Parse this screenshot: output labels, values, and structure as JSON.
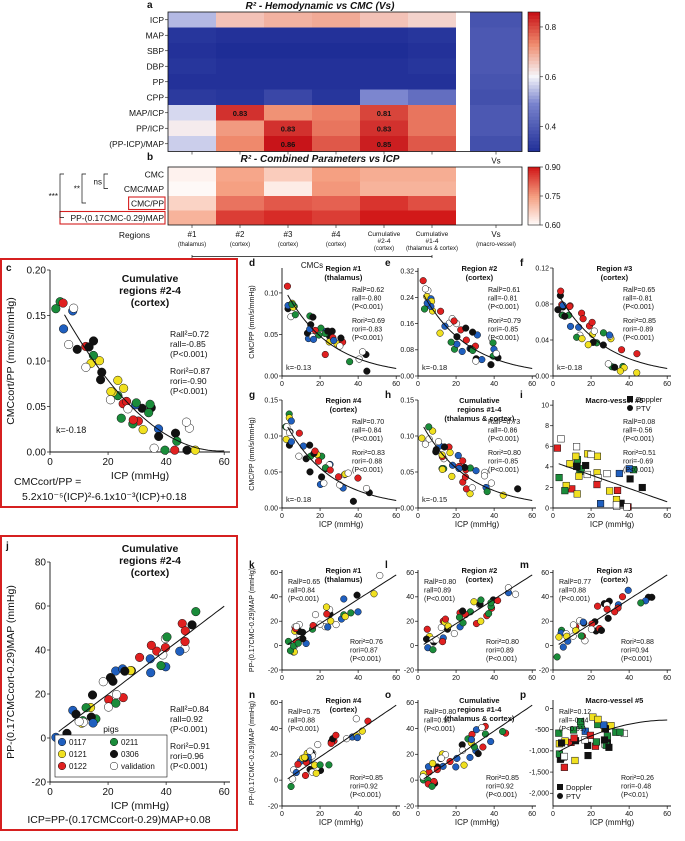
{
  "panel_a": {
    "letter": "a",
    "title": "R² - Hemodynamic vs CMC (Vs)",
    "rows": [
      "ICP",
      "MAP",
      "SBP",
      "DBP",
      "PP",
      "CPP",
      "MAP/ICP",
      "PP/ICP",
      "(PP-ICP)/MAP"
    ],
    "vs_label": "Vs",
    "vs_sublabel": "(macro-vessel)",
    "scale_ticks": [
      "0.8",
      "0.6",
      "0.4"
    ],
    "values": [
      [
        0.55,
        0.67,
        0.69,
        0.7,
        0.67,
        0.65,
        0.39
      ],
      [
        0.32,
        0.31,
        0.31,
        0.31,
        0.31,
        0.32,
        0.4
      ],
      [
        0.31,
        0.3,
        0.3,
        0.3,
        0.3,
        0.31,
        0.4
      ],
      [
        0.32,
        0.31,
        0.31,
        0.31,
        0.31,
        0.32,
        0.4
      ],
      [
        0.31,
        0.31,
        0.31,
        0.31,
        0.31,
        0.31,
        0.39
      ],
      [
        0.33,
        0.32,
        0.36,
        0.32,
        0.5,
        0.45,
        0.38
      ],
      [
        0.58,
        0.83,
        0.73,
        0.75,
        0.81,
        0.76,
        0.4
      ],
      [
        0.62,
        0.72,
        0.83,
        0.76,
        0.83,
        0.76,
        0.4
      ],
      [
        0.57,
        0.74,
        0.86,
        0.79,
        0.85,
        0.79,
        0.38
      ]
    ],
    "labels": [
      {
        "row": 6,
        "col": 1,
        "text": "0.83"
      },
      {
        "row": 6,
        "col": 4,
        "text": "0.81"
      },
      {
        "row": 7,
        "col": 2,
        "text": "0.83"
      },
      {
        "row": 7,
        "col": 4,
        "text": "0.83"
      },
      {
        "row": 8,
        "col": 2,
        "text": "0.86"
      },
      {
        "row": 8,
        "col": 4,
        "text": "0.85"
      }
    ]
  },
  "panel_b": {
    "letter": "b",
    "title": "R² - Combined Parameters vs ICP",
    "rows": [
      "CMC",
      "CMC/MAP",
      "CMC/PP",
      "PP-(0.17CMC-0.29)MAP"
    ],
    "boxed_rows": [
      2,
      3
    ],
    "scale_ticks": [
      "0.90",
      "0.75",
      "0.60"
    ],
    "sig": [
      "***",
      "**",
      "ns"
    ],
    "values": [
      [
        0.62,
        0.74,
        0.68,
        0.75,
        0.73,
        0.73
      ],
      [
        0.61,
        0.75,
        0.63,
        0.76,
        0.72,
        0.72
      ],
      [
        0.67,
        0.8,
        0.83,
        0.82,
        0.87,
        0.84
      ],
      [
        0.72,
        0.86,
        0.88,
        0.86,
        0.91,
        0.9
      ]
    ],
    "regions_label": "Regions",
    "columns": [
      {
        "top": "#1",
        "bottom": "(thalamus)"
      },
      {
        "top": "#2",
        "bottom": "(cortex)"
      },
      {
        "top": "#3",
        "bottom": "(cortex)"
      },
      {
        "top": "#4",
        "bottom": "(cortex)"
      },
      {
        "top": "Cumulative #2-4",
        "bottom": "(cortex)"
      },
      {
        "top": "Cumulative #1-4",
        "bottom": "(thalamus & cortex)"
      }
    ],
    "column_extra": {
      "top": "Vs",
      "bottom": "(macro-vessel)"
    },
    "cmcs_label": "CMCs"
  },
  "panel_c": {
    "letter": "c",
    "title": [
      "Cumulative",
      "regions #2-4",
      "(cortex)"
    ],
    "ylabel": "CMCcort/PP (mm/s/mmHg)",
    "xlabel": "ICP (mmHg)",
    "xticks": [
      0,
      20,
      40,
      60
    ],
    "yticks": [
      0.0,
      0.05,
      0.1,
      0.15,
      0.2
    ],
    "xlim": [
      0,
      62
    ],
    "ylim": [
      0,
      0.2
    ],
    "stats": [
      "Rall²=0.72",
      "rall=-0.85",
      "(P<0.001)",
      "Rori²=0.87",
      "rori=-0.90",
      "(P<0.001)"
    ],
    "k": "k=-0.18",
    "equation": [
      "CMCcort/PP =",
      "5.2x10⁻⁵(ICP)²-6.1x10⁻³(ICP)+0.18"
    ],
    "fit": {
      "a": 5.2e-05,
      "b": -0.0061,
      "c": 0.18,
      "x0": 5,
      "x1": 60
    }
  },
  "panel_j": {
    "letter": "j",
    "title": [
      "Cumulative",
      "regions #2-4",
      "(cortex)"
    ],
    "ylabel": "PP-(0.17CMCcort-0.29)MAP (mmHg)",
    "xlabel": "ICP (mmHg)",
    "xticks": [
      0,
      20,
      40,
      60
    ],
    "yticks": [
      -20,
      0,
      20,
      40,
      60,
      80
    ],
    "xlim": [
      0,
      62
    ],
    "ylim": [
      -20,
      80
    ],
    "stats": [
      "Rall²=0.84",
      "rall=0.92",
      "(P<0.001)",
      "Rori²=0.91",
      "rori=0.96",
      "(P<0.001)"
    ],
    "equation": "ICP=PP-(0.17CMCcort-0.29)MAP+0.08",
    "legend_title": "pigs",
    "legend": [
      {
        "label": "0117",
        "color": "#1f5fbf"
      },
      {
        "label": "0211",
        "color": "#1a8c3a"
      },
      {
        "label": "0121",
        "color": "#f0e020"
      },
      {
        "label": "0306",
        "color": "#111111"
      },
      {
        "label": "0122",
        "color": "#e02020"
      },
      {
        "label": "validation",
        "color": "#ffffff"
      }
    ],
    "fit": {
      "slope": 1.0,
      "intercept": -0.08,
      "x0": 3,
      "x1": 60
    }
  },
  "small_panels_top": [
    {
      "letter": "d",
      "title": [
        "Region #1",
        "(thalamus)"
      ],
      "stats": [
        "Rall²=0.62",
        "rall=-0.80",
        "(P<0.001)",
        "Rori²=0.69",
        "rori=-0.83",
        "(P<0.001)"
      ],
      "k": "k=-0.13",
      "ylabel": "CMC/PP (mm/s/mmHg)",
      "yticks": [
        "0.00",
        "0.05",
        "0.10"
      ],
      "ymax": 0.13,
      "xlabel": ""
    },
    {
      "letter": "e",
      "title": [
        "Region #2",
        "(cortex)"
      ],
      "stats": [
        "Rall²=0.61",
        "rall=-0.81",
        "(P<0.001)",
        "Rori²=0.79",
        "rori=-0.85",
        "(P<0.001)"
      ],
      "k": "k=-0.18",
      "ylabel": "",
      "yticks": [
        "0.00",
        "0.08",
        "0.16",
        "0.24",
        "0.32"
      ],
      "ymax": 0.33,
      "xlabel": ""
    },
    {
      "letter": "f",
      "title": [
        "Region #3",
        "(cortex)"
      ],
      "stats": [
        "Rall²=0.65",
        "rall=-0.81",
        "(P<0.001)",
        "Rori²=0.85",
        "rori=-0.89",
        "(P<0.001)"
      ],
      "k": "k=-0.18",
      "ylabel": "",
      "yticks": [
        "0.00",
        "0.04",
        "0.08",
        "0.12"
      ],
      "ymax": 0.12,
      "xlabel": ""
    },
    {
      "letter": "g",
      "title": [
        "Region #4",
        "(cortex)"
      ],
      "stats": [
        "Rall²=0.70",
        "rall=-0.84",
        "(P<0.001)",
        "Rori²=0.83",
        "rori=-0.88",
        "(P<0.001)"
      ],
      "k": "k=-0.18",
      "ylabel": "CMC/PP (mm/s/mmHg)",
      "yticks": [
        "0.00",
        "0.05",
        "0.10",
        "0.15"
      ],
      "ymax": 0.15,
      "xlabel": "ICP (mmHg)"
    },
    {
      "letter": "h",
      "title": [
        "Cumulative",
        "regions #1-4",
        "(thalamus & cortex)"
      ],
      "stats": [
        "Rall²=0.73",
        "rall=-0.86",
        "(P<0.001)",
        "Rori²=0.80",
        "rori=-0.85",
        "(P<0.001)"
      ],
      "k": "k=-0.15",
      "ylabel": "",
      "yticks": [
        "0.00",
        "0.05",
        "0.10",
        "0.15"
      ],
      "ymax": 0.15,
      "xlabel": "ICP (mmHg)"
    },
    {
      "letter": "i",
      "title": [
        "Macro-vessel #5"
      ],
      "stats": [
        "Rall²=0.08",
        "rall=-0.56",
        "(P<0.001)",
        "Rori²=0.51",
        "rori=-0.69",
        "(P<0.001)"
      ],
      "k": "",
      "ylabel": "",
      "yticks": [
        "0",
        "2",
        "4",
        "6",
        "8",
        "10"
      ],
      "ymax": 10.5,
      "xlabel": "ICP (mmHg)",
      "legend": [
        "Doppler",
        "PTV"
      ]
    }
  ],
  "small_panels_bottom": [
    {
      "letter": "k",
      "title": [
        "Region #1",
        "(thalamus)"
      ],
      "stats": [
        "Rall²=0.65",
        "rall=0.84",
        "(P<0.001)",
        "Rori²=0.76",
        "rori=0.87",
        "(P<0.001)"
      ],
      "ylabel": "PP-(0.17CMC-0.29)MAP (mmHg)",
      "yticks": [
        "-20",
        "0",
        "20",
        "40",
        "60"
      ],
      "xlabel": ""
    },
    {
      "letter": "l",
      "title": [
        "Region #2",
        "(cortex)"
      ],
      "stats": [
        "Rall²=0.80",
        "rall=0.89",
        "(P<0.001)",
        "Rori²=0.80",
        "rori=0.89",
        "(P<0.001)"
      ],
      "ylabel": "",
      "yticks": [
        "-20",
        "0",
        "20",
        "40",
        "60"
      ],
      "xlabel": ""
    },
    {
      "letter": "m",
      "title": [
        "Region #3",
        "(cortex)"
      ],
      "stats": [
        "Rall²=0.77",
        "rall=0.88",
        "(P<0.001)",
        "Rori²=0.88",
        "rori=0.94",
        "(P<0.001)"
      ],
      "ylabel": "",
      "yticks": [
        "-20",
        "0",
        "20",
        "40",
        "60"
      ],
      "xlabel": ""
    },
    {
      "letter": "n",
      "title": [
        "Region #4",
        "(cortex)"
      ],
      "stats": [
        "Rall²=0.75",
        "rall=0.88",
        "(P<0.001)",
        "Rori²=0.85",
        "rori=0.92",
        "(P<0.001)"
      ],
      "ylabel": "PP-(0.17CMC-0.29)MAP (mmHg)",
      "yticks": [
        "-20",
        "0",
        "20",
        "40",
        "60"
      ],
      "xlabel": "ICP (mmHg)"
    },
    {
      "letter": "o",
      "title": [
        "Cumulative",
        "regions #1-4",
        "(thalamus & cortex)"
      ],
      "stats": [
        "Rall²=0.80",
        "rall=0.90",
        "(P<0.001)",
        "Rori²=0.85",
        "rori=0.92",
        "(P<0.001)"
      ],
      "ylabel": "",
      "yticks": [
        "-20",
        "0",
        "20",
        "40",
        "60"
      ],
      "xlabel": "ICP (mmHg)"
    },
    {
      "letter": "p",
      "title": [
        "Macro-vessel #5"
      ],
      "stats": [
        "Rall²=0.12",
        "rall=-0.44",
        "(P<0.01)",
        "Rori²=0.26",
        "rori=-0.48",
        "(P<0.01)"
      ],
      "ylabel": "",
      "yticks": [
        "-2,000",
        "-1,500",
        "-1,000",
        "-500",
        "0"
      ],
      "xlabel": "ICP (mmHg)",
      "legend": [
        "Doppler",
        "PTV"
      ]
    }
  ],
  "small_xticks": [
    0,
    20,
    40,
    60
  ],
  "colors": {
    "blue": "#1f5fbf",
    "green": "#1a8c3a",
    "yellow": "#f0e020",
    "black": "#111111",
    "red": "#e02020",
    "frame": "#d62020"
  }
}
